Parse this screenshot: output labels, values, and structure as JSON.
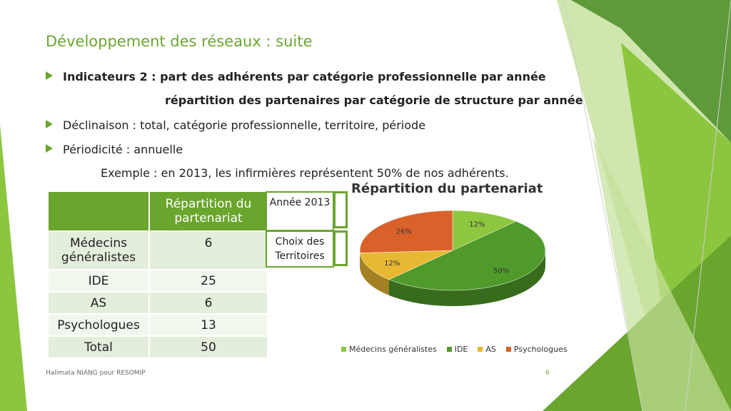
{
  "title": "Développement des réseaux : suite",
  "bullets": {
    "b1": "Indicateurs 2 : part des adhérents par catégorie professionnelle par année",
    "b1_cont": "répartition des partenaires par catégorie de structure par année",
    "b2": "Déclinaison : total, catégorie professionnelle, territoire, période",
    "b3": "Périodicité : annuelle",
    "example": "Exemple : en 2013, les infirmières représentent 50% de nos adhérents."
  },
  "table": {
    "header": "Répartition du partenariat",
    "rows": [
      {
        "label": "Médecins généralistes",
        "value": "6"
      },
      {
        "label": "IDE",
        "value": "25"
      },
      {
        "label": "AS",
        "value": "6"
      },
      {
        "label": "Psychologues",
        "value": "13"
      },
      {
        "label": "Total",
        "value": "50"
      }
    ]
  },
  "controls": {
    "year": "Année 2013",
    "territories": "Choix des Territoires"
  },
  "chart_data": {
    "type": "pie",
    "title": "Répartition du partenariat",
    "categories": [
      "Médecins généralistes",
      "IDE",
      "AS",
      "Psychologues"
    ],
    "values": [
      12,
      50,
      12,
      26
    ],
    "labels": [
      "12%",
      "50%",
      "12%",
      "26%"
    ],
    "colors": [
      "#8dc63f",
      "#4f9a2a",
      "#e7b833",
      "#d9622b"
    ],
    "legend": "bottom"
  },
  "footer": "Halimata NIANG pour RESOMIP",
  "page_number": "6"
}
